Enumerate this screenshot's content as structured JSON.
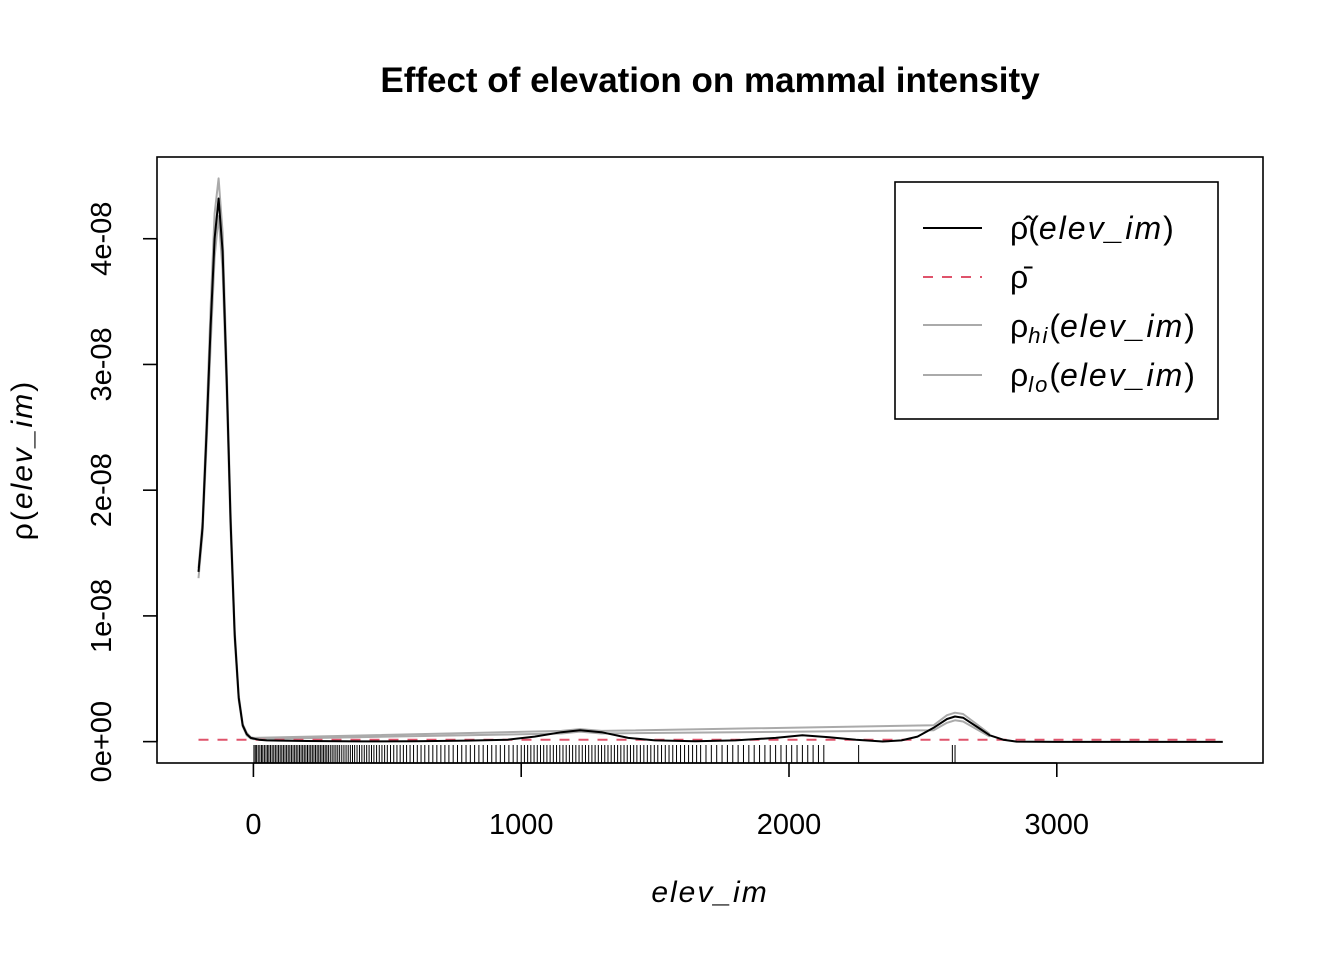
{
  "chart_data": {
    "type": "line",
    "title": "Effect of elevation on mammal intensity",
    "xlabel": "elev_im",
    "ylabel": "ρ(elev_im)",
    "xlim": [
      -360,
      3770
    ],
    "ylim": [
      -1.7e-09,
      4.65e-08
    ],
    "x_ticks": [
      0,
      1000,
      2000,
      3000
    ],
    "x_tick_labels": [
      "0",
      "1000",
      "2000",
      "3000"
    ],
    "y_ticks": [
      0,
      1e-08,
      2e-08,
      3e-08,
      4e-08
    ],
    "y_tick_labels": [
      "0e+00",
      "1e-08",
      "2e-08",
      "3e-08",
      "4e-08"
    ],
    "grid": false,
    "legend_position": "top-right",
    "legend": [
      {
        "symbol": "ρ̂",
        "arg": "elev_im",
        "style": "solid",
        "color": "#000000"
      },
      {
        "symbol": "ρ̄",
        "arg": "",
        "style": "dashed",
        "color": "#DF536B"
      },
      {
        "symbol": "ρ",
        "sub": "hi",
        "arg": "elev_im",
        "style": "solid",
        "color": "#AAAAAA"
      },
      {
        "symbol": "ρ",
        "sub": "lo",
        "arg": "elev_im",
        "style": "solid",
        "color": "#AAAAAA"
      }
    ],
    "series": [
      {
        "name": "ρ̂(elev_im)",
        "color": "#000000",
        "x": [
          -205,
          -190,
          -175,
          -160,
          -145,
          -130,
          -115,
          -100,
          -85,
          -70,
          -55,
          -40,
          -25,
          -10,
          0,
          20,
          50,
          100,
          200,
          400,
          600,
          800,
          950,
          1050,
          1150,
          1220,
          1300,
          1400,
          1500,
          1650,
          1800,
          1950,
          2050,
          2150,
          2250,
          2350,
          2420,
          2480,
          2540,
          2590,
          2620,
          2650,
          2700,
          2750,
          2800,
          2850,
          3000,
          3200,
          3400,
          3620
        ],
        "y": [
          1.35e-08,
          1.7e-08,
          2.45e-08,
          3.3e-08,
          4e-08,
          4.32e-08,
          3.9e-08,
          2.9e-08,
          1.75e-08,
          8.5e-09,
          3.5e-09,
          1.3e-09,
          6e-10,
          3e-10,
          2.5e-10,
          1.5e-10,
          1e-10,
          8e-11,
          5e-11,
          2e-11,
          3e-11,
          8e-11,
          1.5e-10,
          4e-10,
          7.5e-10,
          9e-10,
          7.5e-10,
          3e-10,
          1e-10,
          3e-11,
          1e-10,
          3e-10,
          5e-10,
          3.5e-10,
          1.5e-10,
          1e-11,
          1e-10,
          4e-10,
          1.1e-09,
          1.8e-09,
          2e-09,
          1.9e-09,
          1.2e-09,
          5e-10,
          1.5e-10,
          0,
          -2e-11,
          -2e-11,
          -2e-11,
          -2e-11
        ]
      },
      {
        "name": "ρhi(elev_im)",
        "color": "#AAAAAA",
        "x": [
          -205,
          -190,
          -175,
          -160,
          -145,
          -130,
          -115,
          -100,
          -85,
          -70,
          -55,
          -40,
          -25,
          -10,
          0,
          1150,
          1220,
          1300,
          2540,
          2590,
          2620,
          2650,
          2700,
          2750
        ],
        "y": [
          1.38e-08,
          1.75e-08,
          2.55e-08,
          3.45e-08,
          4.2e-08,
          4.48e-08,
          4.05e-08,
          3e-08,
          1.82e-08,
          8.9e-09,
          3.7e-09,
          1.4e-09,
          7e-10,
          3.5e-10,
          3e-10,
          8.5e-10,
          1e-09,
          8.5e-10,
          1.3e-09,
          2.1e-09,
          2.3e-09,
          2.2e-09,
          1.4e-09,
          6e-10
        ]
      },
      {
        "name": "ρlo(elev_im)",
        "color": "#AAAAAA",
        "x": [
          -205,
          -190,
          -175,
          -160,
          -145,
          -130,
          -115,
          -100,
          -85,
          -70,
          -55,
          -40,
          -25,
          -10,
          0,
          1150,
          1220,
          1300,
          2540,
          2590,
          2620,
          2650,
          2700,
          2750
        ],
        "y": [
          1.3e-08,
          1.65e-08,
          2.35e-08,
          3.15e-08,
          3.85e-08,
          4.18e-08,
          3.75e-08,
          2.8e-08,
          1.68e-08,
          8.1e-09,
          3.3e-09,
          1.2e-09,
          5e-10,
          2.5e-10,
          2e-10,
          6.5e-10,
          8e-10,
          6.5e-10,
          9e-10,
          1.5e-09,
          1.7e-09,
          1.6e-09,
          1e-09,
          4e-10
        ]
      },
      {
        "name": "ρ̄",
        "color": "#DF536B",
        "style": "dashed",
        "x": [
          -205,
          3620
        ],
        "y": [
          1.5e-10,
          1.5e-10
        ]
      }
    ],
    "rug": [
      2,
      7,
      12,
      18,
      24,
      30,
      35,
      41,
      47,
      53,
      58,
      64,
      70,
      76,
      82,
      88,
      94,
      100,
      106,
      112,
      118,
      124,
      130,
      136,
      142,
      148,
      154,
      160,
      166,
      172,
      178,
      184,
      190,
      196,
      202,
      208,
      214,
      220,
      226,
      232,
      238,
      244,
      250,
      256,
      262,
      268,
      274,
      280,
      287,
      294,
      301,
      308,
      315,
      322,
      330,
      338,
      346,
      354,
      362,
      370,
      378,
      387,
      396,
      405,
      414,
      423,
      432,
      441,
      450,
      460,
      470,
      480,
      490,
      500,
      512,
      524,
      536,
      548,
      560,
      572,
      585,
      598,
      612,
      626,
      640,
      655,
      670,
      685,
      700,
      715,
      730,
      746,
      762,
      778,
      794,
      810,
      826,
      842,
      858,
      874,
      890,
      906,
      922,
      938,
      954,
      970,
      985,
      1000,
      1012,
      1024,
      1036,
      1048,
      1060,
      1072,
      1084,
      1096,
      1108,
      1120,
      1132,
      1144,
      1156,
      1168,
      1180,
      1192,
      1204,
      1216,
      1228,
      1240,
      1252,
      1264,
      1276,
      1288,
      1300,
      1312,
      1324,
      1336,
      1348,
      1360,
      1372,
      1384,
      1396,
      1408,
      1420,
      1432,
      1445,
      1458,
      1471,
      1484,
      1497,
      1510,
      1524,
      1538,
      1552,
      1566,
      1580,
      1595,
      1610,
      1625,
      1640,
      1655,
      1670,
      1690,
      1710,
      1730,
      1750,
      1770,
      1790,
      1810,
      1830,
      1850,
      1870,
      1890,
      1910,
      1930,
      1950,
      1970,
      1990,
      2010,
      2030,
      2050,
      2070,
      2090,
      2110,
      2130,
      2260,
      2610,
      2620
    ]
  }
}
